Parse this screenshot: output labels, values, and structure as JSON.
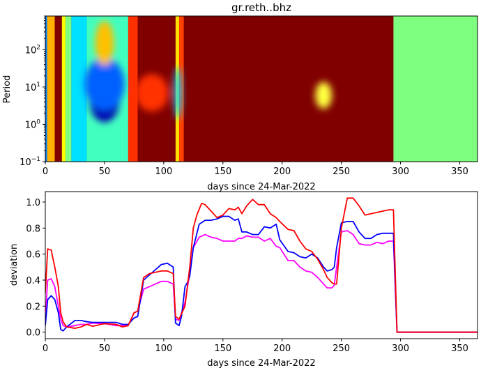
{
  "chart_data": [
    {
      "type": "heatmap",
      "title": "gr.reth..bhz",
      "xlabel": "days since 24-Mar-2022",
      "ylabel": "Period",
      "xlim": [
        0,
        365
      ],
      "ylim": [
        0.1,
        800
      ],
      "yscale": "log",
      "xticks": [
        0,
        50,
        100,
        150,
        200,
        250,
        300,
        350
      ],
      "yticks": [
        {
          "value": 0.1,
          "label": "10",
          "exp": "−1"
        },
        {
          "value": 1,
          "label": "10",
          "exp": "0"
        },
        {
          "value": 10,
          "label": "10",
          "exp": "1"
        },
        {
          "value": 100,
          "label": "10",
          "exp": "2"
        }
      ],
      "colormap": "jet",
      "background_color": "#800000",
      "regions": [
        {
          "x": [
            0,
            1.5
          ],
          "color": "#0080ff"
        },
        {
          "x": [
            1.5,
            8
          ],
          "color": "#ffb000"
        },
        {
          "x": [
            8,
            14
          ],
          "color": "#800000"
        },
        {
          "x": [
            14,
            17
          ],
          "color": "#ffff00"
        },
        {
          "x": [
            17,
            22
          ],
          "color": "#7fff7f"
        },
        {
          "x": [
            22,
            35
          ],
          "color": "#00e0ff"
        },
        {
          "x": [
            35,
            70
          ],
          "color": "#40ffbf"
        },
        {
          "x": [
            70,
            78
          ],
          "color": "#ff3000"
        },
        {
          "x": [
            78,
            110
          ],
          "color": "#800000"
        },
        {
          "x": [
            110,
            113
          ],
          "color": "#ffe000"
        },
        {
          "x": [
            113,
            117
          ],
          "color": "#ff4000"
        },
        {
          "x": [
            117,
            294
          ],
          "color": "#800000"
        },
        {
          "x": [
            294,
            365
          ],
          "color": "#7fff7f"
        }
      ],
      "blobs": [
        {
          "x": 50,
          "period": 5,
          "sx": 13,
          "sy": 0.32,
          "color": "#0000b0"
        },
        {
          "x": 50,
          "period": 12,
          "sx": 17,
          "sy": 0.35,
          "color": "#0060ff"
        },
        {
          "x": 50,
          "period": 150,
          "sx": 8,
          "sy": 0.3,
          "color": "#ffc000"
        },
        {
          "x": 112,
          "period": 7,
          "sx": 3,
          "sy": 0.35,
          "color": "#00d0ff"
        },
        {
          "x": 235,
          "period": 6,
          "sx": 7,
          "sy": 0.18,
          "color": "#ffff40"
        },
        {
          "x": 90,
          "period": 7,
          "sx": 14,
          "sy": 0.25,
          "color": "#ff3000"
        }
      ]
    },
    {
      "type": "line",
      "title": "",
      "xlabel": "days since 24-Mar-2022",
      "ylabel": "deviation",
      "xlim": [
        0,
        365
      ],
      "ylim": [
        -0.05,
        1.08
      ],
      "xticks": [
        0,
        50,
        100,
        150,
        200,
        250,
        300,
        350
      ],
      "yticks": [
        0.0,
        0.2,
        0.4,
        0.6,
        0.8,
        1.0
      ],
      "ytick_labels": [
        "0.0",
        "0.2",
        "0.4",
        "0.6",
        "0.8",
        "1.0"
      ],
      "grid": false,
      "series": [
        {
          "color": "#ff00ff",
          "x": [
            0,
            2,
            5,
            8,
            11,
            13,
            15,
            18,
            25,
            30,
            35,
            40,
            50,
            60,
            65,
            70,
            75,
            78,
            83,
            88,
            93,
            98,
            103,
            108,
            110,
            113,
            118,
            122,
            125,
            130,
            135,
            140,
            145,
            150,
            155,
            160,
            163,
            166,
            170,
            175,
            180,
            185,
            190,
            195,
            198,
            205,
            210,
            215,
            220,
            225,
            230,
            235,
            238,
            242,
            244,
            246,
            250,
            255,
            260,
            265,
            270,
            275,
            280,
            285,
            290,
            292,
            294,
            297,
            365
          ],
          "y": [
            0.1,
            0.4,
            0.41,
            0.35,
            0.2,
            0.1,
            0.05,
            0.04,
            0.05,
            0.06,
            0.06,
            0.07,
            0.065,
            0.05,
            0.05,
            0.05,
            0.15,
            0.16,
            0.33,
            0.35,
            0.37,
            0.39,
            0.39,
            0.37,
            0.1,
            0.09,
            0.23,
            0.45,
            0.65,
            0.73,
            0.75,
            0.73,
            0.72,
            0.7,
            0.7,
            0.7,
            0.72,
            0.72,
            0.74,
            0.73,
            0.73,
            0.7,
            0.72,
            0.66,
            0.65,
            0.55,
            0.55,
            0.5,
            0.47,
            0.46,
            0.42,
            0.37,
            0.34,
            0.34,
            0.36,
            0.5,
            0.77,
            0.78,
            0.75,
            0.68,
            0.67,
            0.67,
            0.69,
            0.68,
            0.7,
            0.7,
            0.7,
            0.0,
            0.0
          ]
        },
        {
          "color": "#0000ff",
          "x": [
            0,
            2,
            5,
            8,
            11,
            13,
            15,
            18,
            25,
            30,
            35,
            40,
            50,
            60,
            65,
            70,
            75,
            78,
            83,
            88,
            93,
            98,
            103,
            108,
            110,
            113,
            115,
            118,
            120,
            122,
            125,
            130,
            135,
            140,
            145,
            150,
            155,
            160,
            163,
            166,
            170,
            175,
            180,
            185,
            190,
            195,
            198,
            205,
            210,
            215,
            220,
            225,
            230,
            235,
            238,
            242,
            244,
            246,
            250,
            255,
            260,
            265,
            270,
            275,
            280,
            285,
            290,
            292,
            294,
            297,
            365
          ],
          "y": [
            0.05,
            0.25,
            0.28,
            0.25,
            0.15,
            0.02,
            0.01,
            0.04,
            0.09,
            0.09,
            0.08,
            0.075,
            0.075,
            0.075,
            0.06,
            0.06,
            0.11,
            0.12,
            0.4,
            0.44,
            0.48,
            0.52,
            0.53,
            0.5,
            0.07,
            0.05,
            0.12,
            0.35,
            0.38,
            0.43,
            0.65,
            0.83,
            0.86,
            0.86,
            0.87,
            0.89,
            0.89,
            0.86,
            0.87,
            0.77,
            0.77,
            0.75,
            0.75,
            0.81,
            0.8,
            0.83,
            0.71,
            0.62,
            0.61,
            0.58,
            0.57,
            0.6,
            0.57,
            0.5,
            0.47,
            0.48,
            0.5,
            0.65,
            0.84,
            0.85,
            0.85,
            0.77,
            0.72,
            0.72,
            0.75,
            0.76,
            0.76,
            0.76,
            0.76,
            0.0,
            0.0
          ]
        },
        {
          "color": "#ff0000",
          "x": [
            0,
            2,
            5,
            8,
            11,
            13,
            15,
            18,
            25,
            30,
            35,
            40,
            50,
            60,
            65,
            70,
            75,
            78,
            83,
            88,
            93,
            98,
            103,
            108,
            110,
            113,
            118,
            122,
            125,
            128,
            132,
            135,
            140,
            145,
            150,
            155,
            160,
            163,
            166,
            170,
            175,
            180,
            185,
            190,
            195,
            198,
            205,
            210,
            215,
            220,
            225,
            230,
            235,
            238,
            242,
            244,
            246,
            250,
            255,
            260,
            265,
            270,
            275,
            280,
            285,
            290,
            292,
            294,
            297,
            365
          ],
          "y": [
            0.3,
            0.64,
            0.63,
            0.5,
            0.35,
            0.15,
            0.08,
            0.04,
            0.03,
            0.04,
            0.06,
            0.045,
            0.065,
            0.06,
            0.04,
            0.05,
            0.15,
            0.16,
            0.42,
            0.45,
            0.46,
            0.47,
            0.47,
            0.45,
            0.12,
            0.1,
            0.2,
            0.5,
            0.8,
            0.9,
            0.99,
            0.98,
            0.93,
            0.88,
            0.9,
            0.95,
            0.94,
            0.96,
            0.91,
            0.97,
            1.02,
            0.98,
            0.98,
            0.91,
            0.88,
            0.85,
            0.79,
            0.78,
            0.7,
            0.64,
            0.62,
            0.56,
            0.48,
            0.42,
            0.38,
            0.37,
            0.37,
            0.8,
            1.03,
            1.03,
            0.97,
            0.9,
            0.91,
            0.92,
            0.93,
            0.94,
            0.94,
            0.94,
            0.0,
            0.0
          ]
        }
      ]
    }
  ]
}
